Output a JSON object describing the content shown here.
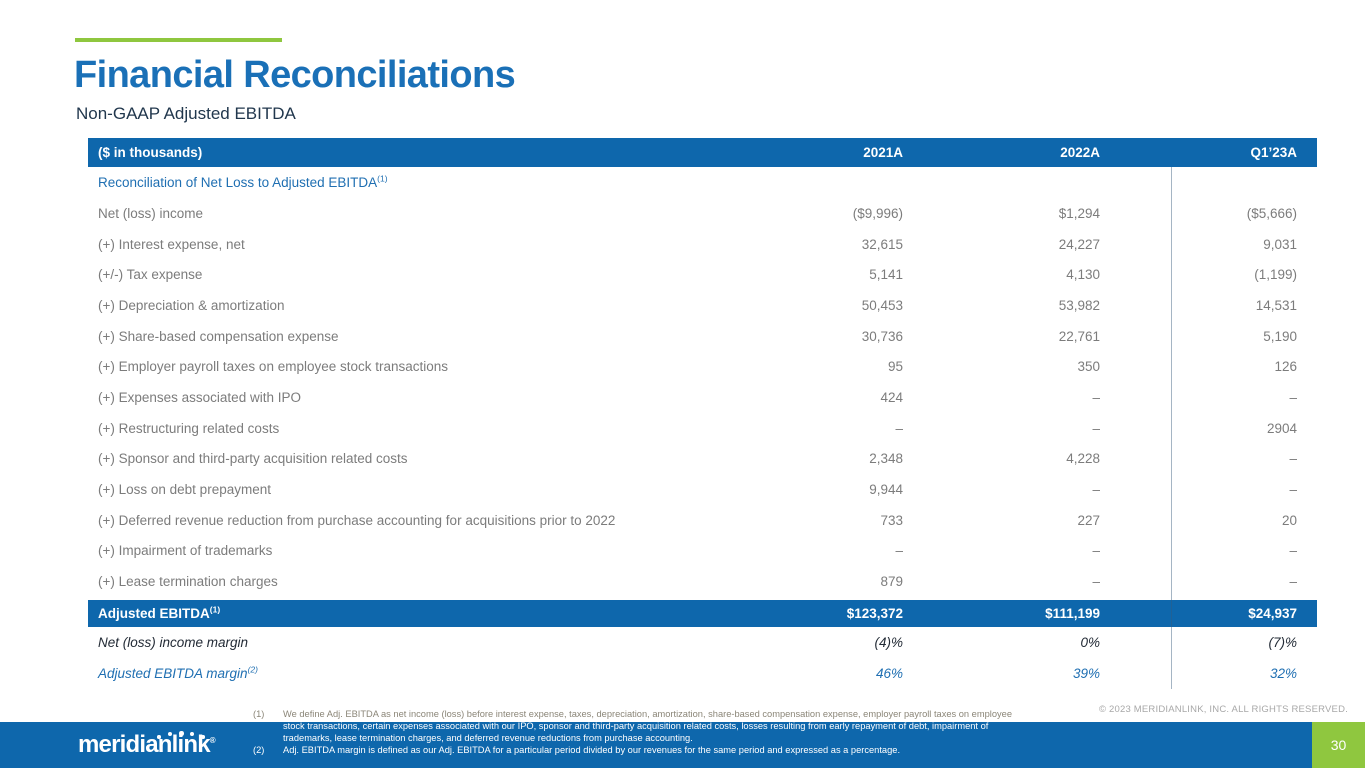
{
  "colors": {
    "brand_blue": "#0E67AC",
    "title_blue": "#1A70B7",
    "link_blue": "#1F6FB2",
    "accent_green": "#8FC73F",
    "dark_navy": "#21374D",
    "text_gray": "#7C7C7C"
  },
  "header": {
    "title": "Financial Reconciliations",
    "subtitle": "Non-GAAP Adjusted EBITDA"
  },
  "table": {
    "unit_label": "($ in thousands)",
    "columns": [
      "2021A",
      "2022A",
      "Q1’23A"
    ],
    "section": {
      "label": "Reconciliation of Net Loss to Adjusted EBITDA",
      "sup": "(1)"
    },
    "rows": [
      {
        "label": "Net (loss) income",
        "values": [
          "($9,996)",
          "$1,294",
          "($5,666)"
        ]
      },
      {
        "label": "(+) Interest expense, net",
        "values": [
          "32,615",
          "24,227",
          "9,031"
        ]
      },
      {
        "label": "(+/-) Tax expense",
        "values": [
          "5,141",
          "4,130",
          "(1,199)"
        ]
      },
      {
        "label": "(+) Depreciation & amortization",
        "values": [
          "50,453",
          "53,982",
          "14,531"
        ]
      },
      {
        "label": "(+) Share-based compensation expense",
        "values": [
          "30,736",
          "22,761",
          "5,190"
        ]
      },
      {
        "label": "(+) Employer payroll taxes on employee stock transactions",
        "values": [
          "95",
          "350",
          "126"
        ]
      },
      {
        "label": "(+) Expenses associated with IPO",
        "values": [
          "424",
          "–",
          "–"
        ]
      },
      {
        "label": "(+) Restructuring related costs",
        "values": [
          "–",
          "–",
          "2904"
        ]
      },
      {
        "label": "(+) Sponsor and third-party acquisition related costs",
        "values": [
          "2,348",
          "4,228",
          "–"
        ]
      },
      {
        "label": "(+) Loss on debt prepayment",
        "values": [
          "9,944",
          "–",
          "–"
        ]
      },
      {
        "label": "(+) Deferred revenue reduction from purchase accounting for acquisitions prior to 2022",
        "values": [
          "733",
          "227",
          "20"
        ]
      },
      {
        "label": "(+) Impairment of trademarks",
        "values": [
          "–",
          "–",
          "–"
        ]
      },
      {
        "label": "(+) Lease termination charges",
        "values": [
          "879",
          "–",
          "–"
        ]
      }
    ],
    "total": {
      "label": "Adjusted EBITDA",
      "sup": "(1)",
      "values": [
        "$123,372",
        "$111,199",
        "$24,937"
      ]
    },
    "margin_rows": [
      {
        "label": "Net (loss) income margin",
        "sup": "",
        "values": [
          "(4)%",
          "0%",
          "(7)%"
        ],
        "style": "dark"
      },
      {
        "label": "Adjusted EBITDA margin",
        "sup": "(2)",
        "values": [
          "46%",
          "39%",
          "32%"
        ],
        "style": "blue"
      }
    ]
  },
  "footnotes": {
    "lines": [
      {
        "num": "(1)",
        "text": "We define Adj. EBITDA as net income (loss) before interest expense, taxes, depreciation, amortization, share-based compensation expense, employer payroll taxes on employee",
        "on_blue": false
      },
      {
        "num": "",
        "text": "stock transactions, certain expenses associated with our IPO, sponsor and third-party acquisition related costs, losses resulting from early repayment of debt, impairment of",
        "on_blue": true
      },
      {
        "num": "",
        "text": "trademarks, lease termination charges, and deferred revenue reductions from purchase accounting.",
        "on_blue": true
      },
      {
        "num": "(2)",
        "text": "Adj. EBITDA margin is defined as our Adj. EBITDA for a particular period divided by our revenues for the same period and expressed as a percentage.",
        "on_blue": true
      }
    ]
  },
  "footer": {
    "copyright": "© 2023 MERIDIANLINK, INC. ALL RIGHTS RESERVED.",
    "logo_text": "meridianlink",
    "logo_reg": "®",
    "page_number": "30"
  }
}
